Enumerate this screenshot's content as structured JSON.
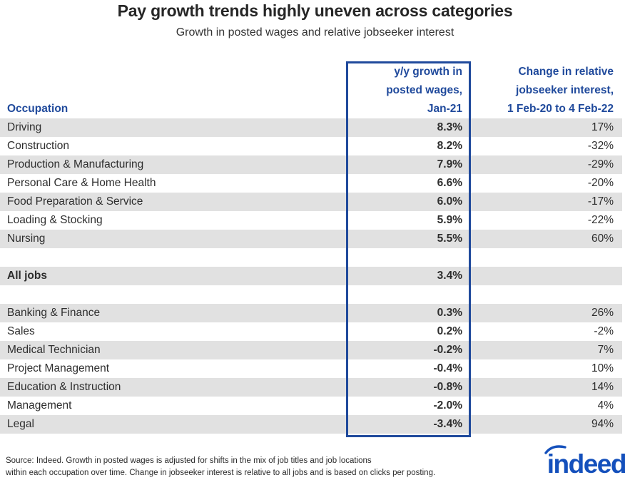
{
  "title": "Pay growth trends highly uneven across categories",
  "subtitle": "Growth in posted wages and relative jobseeker interest",
  "colors": {
    "header_blue": "#204a9c",
    "row_shade_gray": "#e1e1e1",
    "logo_blue": "#1450bc",
    "body_text": "#2e2e2e"
  },
  "table": {
    "headers": {
      "occupation": "Occupation",
      "wage_lines": [
        "y/y growth in",
        "posted wages,",
        "Jan-21"
      ],
      "interest_lines": [
        "Change in relative",
        "jobseeker interest,",
        "1 Feb-20 to 4 Feb-22"
      ]
    },
    "rows": [
      {
        "occupation": "Driving",
        "wage": "8.3%",
        "interest": "17%",
        "shaded": true,
        "bold": false,
        "spacer": false
      },
      {
        "occupation": "Construction",
        "wage": "8.2%",
        "interest": "-32%",
        "shaded": false,
        "bold": false,
        "spacer": false
      },
      {
        "occupation": "Production & Manufacturing",
        "wage": "7.9%",
        "interest": "-29%",
        "shaded": true,
        "bold": false,
        "spacer": false
      },
      {
        "occupation": "Personal Care & Home Health",
        "wage": "6.6%",
        "interest": "-20%",
        "shaded": false,
        "bold": false,
        "spacer": false
      },
      {
        "occupation": "Food Preparation & Service",
        "wage": "6.0%",
        "interest": "-17%",
        "shaded": true,
        "bold": false,
        "spacer": false
      },
      {
        "occupation": "Loading & Stocking",
        "wage": "5.9%",
        "interest": "-22%",
        "shaded": false,
        "bold": false,
        "spacer": false
      },
      {
        "occupation": "Nursing",
        "wage": "5.5%",
        "interest": "60%",
        "shaded": true,
        "bold": false,
        "spacer": false
      },
      {
        "occupation": "",
        "wage": "",
        "interest": "",
        "shaded": false,
        "bold": false,
        "spacer": true
      },
      {
        "occupation": "All jobs",
        "wage": "3.4%",
        "interest": "",
        "shaded": true,
        "bold": true,
        "spacer": false
      },
      {
        "occupation": "",
        "wage": "",
        "interest": "",
        "shaded": false,
        "bold": false,
        "spacer": true
      },
      {
        "occupation": "Banking & Finance",
        "wage": "0.3%",
        "interest": "26%",
        "shaded": true,
        "bold": false,
        "spacer": false
      },
      {
        "occupation": "Sales",
        "wage": "0.2%",
        "interest": "-2%",
        "shaded": false,
        "bold": false,
        "spacer": false
      },
      {
        "occupation": "Medical Technician",
        "wage": "-0.2%",
        "interest": "7%",
        "shaded": true,
        "bold": false,
        "spacer": false
      },
      {
        "occupation": "Project Management",
        "wage": "-0.4%",
        "interest": "10%",
        "shaded": false,
        "bold": false,
        "spacer": false
      },
      {
        "occupation": "Education & Instruction",
        "wage": "-0.8%",
        "interest": "14%",
        "shaded": true,
        "bold": false,
        "spacer": false
      },
      {
        "occupation": "Management",
        "wage": "-2.0%",
        "interest": "4%",
        "shaded": false,
        "bold": false,
        "spacer": false
      },
      {
        "occupation": "Legal",
        "wage": "-3.4%",
        "interest": "94%",
        "shaded": true,
        "bold": false,
        "spacer": false
      }
    ]
  },
  "footer": {
    "source_lines": [
      "Source: Indeed. Growth in posted wages is adjusted for shifts in the mix of job titles and job locations",
      "within each occupation over time. Change in jobseeker interest is relative to all jobs and is based on clicks per posting."
    ],
    "logo_text": "indeed"
  },
  "chart_data": {
    "type": "table",
    "title": "Pay growth trends highly uneven across categories",
    "subtitle": "Growth in posted wages and relative jobseeker interest",
    "columns": [
      "Occupation",
      "y/y growth in posted wages, Jan-21",
      "Change in relative jobseeker interest, 1 Feb-20 to 4 Feb-22"
    ],
    "rows": [
      {
        "occupation": "Driving",
        "wage_growth_pct": 8.3,
        "jobseeker_interest_change_pct": 17
      },
      {
        "occupation": "Construction",
        "wage_growth_pct": 8.2,
        "jobseeker_interest_change_pct": -32
      },
      {
        "occupation": "Production & Manufacturing",
        "wage_growth_pct": 7.9,
        "jobseeker_interest_change_pct": -29
      },
      {
        "occupation": "Personal Care & Home Health",
        "wage_growth_pct": 6.6,
        "jobseeker_interest_change_pct": -20
      },
      {
        "occupation": "Food Preparation & Service",
        "wage_growth_pct": 6.0,
        "jobseeker_interest_change_pct": -17
      },
      {
        "occupation": "Loading & Stocking",
        "wage_growth_pct": 5.9,
        "jobseeker_interest_change_pct": -22
      },
      {
        "occupation": "Nursing",
        "wage_growth_pct": 5.5,
        "jobseeker_interest_change_pct": 60
      },
      {
        "occupation": "All jobs",
        "wage_growth_pct": 3.4,
        "jobseeker_interest_change_pct": null
      },
      {
        "occupation": "Banking & Finance",
        "wage_growth_pct": 0.3,
        "jobseeker_interest_change_pct": 26
      },
      {
        "occupation": "Sales",
        "wage_growth_pct": 0.2,
        "jobseeker_interest_change_pct": -2
      },
      {
        "occupation": "Medical Technician",
        "wage_growth_pct": -0.2,
        "jobseeker_interest_change_pct": 7
      },
      {
        "occupation": "Project Management",
        "wage_growth_pct": -0.4,
        "jobseeker_interest_change_pct": 10
      },
      {
        "occupation": "Education & Instruction",
        "wage_growth_pct": -0.8,
        "jobseeker_interest_change_pct": 14
      },
      {
        "occupation": "Management",
        "wage_growth_pct": -2.0,
        "jobseeker_interest_change_pct": 4
      },
      {
        "occupation": "Legal",
        "wage_growth_pct": -3.4,
        "jobseeker_interest_change_pct": 94
      }
    ]
  }
}
